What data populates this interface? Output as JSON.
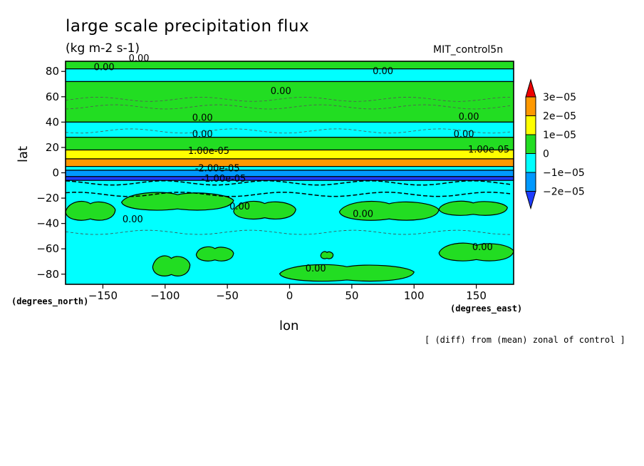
{
  "chart_data": {
    "type": "heatmap",
    "title": "large scale precipitation flux",
    "units": "(kg m-2 s-1)",
    "run_label": "MIT_control5n",
    "xlabel": "lon",
    "ylabel": "lat",
    "x_units": "(degrees_east)",
    "y_units": "(degrees_north)",
    "note": "[ (diff) from (mean) zonal of control ]",
    "xlim": [
      -180,
      180
    ],
    "ylim": [
      -88,
      88
    ],
    "x_ticks": [
      -150,
      -100,
      -50,
      0,
      50,
      100,
      150
    ],
    "y_ticks": [
      -80,
      -60,
      -40,
      -20,
      0,
      20,
      40,
      60,
      80
    ],
    "colorbar": {
      "labels": [
        "3e-05",
        "2e-05",
        "1e-05",
        "0",
        "-1e-05",
        "-2e-05"
      ],
      "levels": [
        3e-05,
        2e-05,
        1e-05,
        0,
        -1e-05,
        -2e-05
      ],
      "colors": [
        "#ee0000",
        "#ff9900",
        "#ffff00",
        "#22dd22",
        "#00ffff",
        "#0099ff",
        "#1e3cff"
      ]
    },
    "latitude_bands": [
      {
        "lat_from": 88,
        "lat_to": 82,
        "level": 0
      },
      {
        "lat_from": 82,
        "lat_to": 72,
        "level": -1e-05
      },
      {
        "lat_from": 72,
        "lat_to": 40,
        "level": 0
      },
      {
        "lat_from": 40,
        "lat_to": 28,
        "level": -1e-05
      },
      {
        "lat_from": 28,
        "lat_to": 18,
        "level": 0
      },
      {
        "lat_from": 18,
        "lat_to": 11,
        "level": 1e-05
      },
      {
        "lat_from": 11,
        "lat_to": 5,
        "level": 2e-05
      },
      {
        "lat_from": 5,
        "lat_to": 2,
        "level": -1e-05
      },
      {
        "lat_from": 2,
        "lat_to": -3,
        "level": -2e-05
      },
      {
        "lat_from": -3,
        "lat_to": -6,
        "level": -3e-05
      },
      {
        "lat_from": -6,
        "lat_to": -88,
        "level": -1e-05
      }
    ],
    "regions_zero_level": [
      {
        "lon": [
          -180,
          -140
        ],
        "lat": [
          -38,
          -22
        ]
      },
      {
        "lon": [
          -135,
          -45
        ],
        "lat": [
          -30,
          -15
        ]
      },
      {
        "lon": [
          -45,
          5
        ],
        "lat": [
          -37,
          -22
        ]
      },
      {
        "lon": [
          40,
          120
        ],
        "lat": [
          -38,
          -22
        ]
      },
      {
        "lon": [
          120,
          175
        ],
        "lat": [
          -34,
          -22
        ]
      },
      {
        "lon": [
          -110,
          -80
        ],
        "lat": [
          -82,
          -65
        ]
      },
      {
        "lon": [
          -75,
          -45
        ],
        "lat": [
          -70,
          -58
        ]
      },
      {
        "lon": [
          -8,
          100
        ],
        "lat": [
          -86,
          -72
        ]
      },
      {
        "lon": [
          25,
          35
        ],
        "lat": [
          -68,
          -62
        ]
      },
      {
        "lon": [
          120,
          180
        ],
        "lat": [
          -70,
          -55
        ]
      }
    ],
    "contour_labels": [
      {
        "text": "0.00",
        "lon": -149,
        "lat": 81
      },
      {
        "text": "0.00",
        "lon": -121,
        "lat": 88
      },
      {
        "text": "0.00",
        "lon": -7,
        "lat": 62
      },
      {
        "text": "0.00",
        "lon": 75,
        "lat": 78
      },
      {
        "text": "0.00",
        "lon": -70,
        "lat": 41
      },
      {
        "text": "0.00",
        "lon": 144,
        "lat": 42
      },
      {
        "text": "0.00",
        "lon": -70,
        "lat": 28
      },
      {
        "text": "0.00",
        "lon": 140,
        "lat": 28
      },
      {
        "text": "1.00e-05",
        "lon": -65,
        "lat": 15
      },
      {
        "text": "1.00e-05",
        "lon": 160,
        "lat": 16
      },
      {
        "text": "-2.00e-05",
        "lon": -58,
        "lat": 1
      },
      {
        "text": "-1.00e-05",
        "lon": -53,
        "lat": -7
      },
      {
        "text": "0.00",
        "lon": -40,
        "lat": -29
      },
      {
        "text": "0.00",
        "lon": 59,
        "lat": -35
      },
      {
        "text": "0.00",
        "lon": -126,
        "lat": -39
      },
      {
        "text": "0.00",
        "lon": 155,
        "lat": -61
      },
      {
        "text": "0.00",
        "lon": 21,
        "lat": -78
      }
    ]
  }
}
